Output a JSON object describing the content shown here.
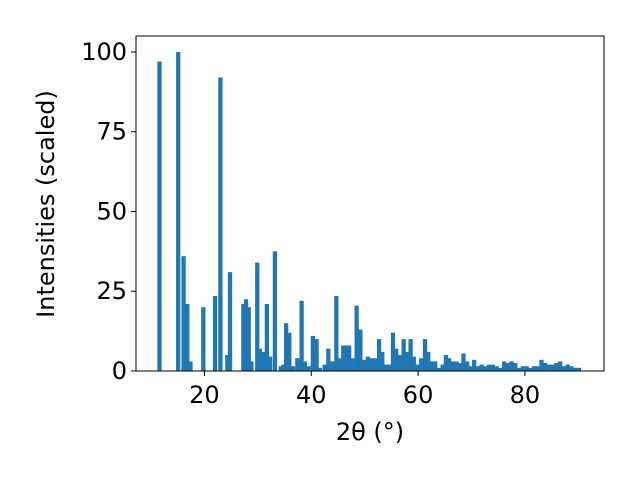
{
  "chart_data": {
    "type": "bar",
    "xlabel": "2θ (°)",
    "ylabel": "Intensities (scaled)",
    "xlim": [
      7.2,
      94.8
    ],
    "ylim": [
      0,
      105
    ],
    "x_ticks": [
      20,
      40,
      60,
      80
    ],
    "y_ticks": [
      0,
      25,
      50,
      75,
      100
    ],
    "grid": false,
    "bar_color": "#1f77b4",
    "bar_width": 0.8,
    "x": [
      11.6,
      15.1,
      16.1,
      16.8,
      17.4,
      19.8,
      22.0,
      23.0,
      24.3,
      24.8,
      27.3,
      27.8,
      28.3,
      28.8,
      29.9,
      30.4,
      31.0,
      31.7,
      32.3,
      33.2,
      34.3,
      34.8,
      35.3,
      35.9,
      36.6,
      37.4,
      38.2,
      38.8,
      39.5,
      40.3,
      41.0,
      41.6,
      42.5,
      43.2,
      44.0,
      44.7,
      45.3,
      46.0,
      46.6,
      47.1,
      47.7,
      48.5,
      49.2,
      49.9,
      50.6,
      51.3,
      52.0,
      52.7,
      53.3,
      54.0,
      54.7,
      55.3,
      55.9,
      56.6,
      57.3,
      58.0,
      58.6,
      59.2,
      59.9,
      60.6,
      61.3,
      61.9,
      62.5,
      63.2,
      63.9,
      64.6,
      65.2,
      65.8,
      66.5,
      67.2,
      67.8,
      68.5,
      69.2,
      69.8,
      70.5,
      71.2,
      71.9,
      72.6,
      73.3,
      74.0,
      74.7,
      75.4,
      76.1,
      76.8,
      77.5,
      78.2,
      78.9,
      79.6,
      80.3,
      81.0,
      81.7,
      82.4,
      83.1,
      83.8,
      84.5,
      85.2,
      85.9,
      86.6,
      87.3,
      88.0,
      88.7,
      89.4,
      90.1
    ],
    "values": [
      97,
      100,
      36,
      21,
      3,
      20,
      23.5,
      92,
      5,
      31,
      21,
      22.5,
      20,
      3,
      34,
      7,
      6,
      21,
      4.5,
      37.5,
      1.5,
      2,
      15,
      12,
      1.5,
      4,
      22,
      3,
      1.5,
      11,
      10,
      1,
      2,
      7,
      3,
      23.5,
      4,
      8,
      8,
      8,
      4,
      20.5,
      13,
      3.5,
      4.5,
      4,
      4,
      10,
      6,
      2,
      2,
      12,
      7,
      5,
      10,
      6,
      10,
      4.5,
      2,
      4,
      10,
      6,
      3,
      3,
      1,
      2,
      5,
      4,
      3,
      3,
      2.5,
      5.5,
      3,
      1.5,
      3.5,
      1.5,
      2,
      1.5,
      2,
      2,
      1.5,
      1,
      3,
      2.5,
      3,
      2.5,
      1,
      1.5,
      1.5,
      1,
      1.5,
      1.5,
      3.5,
      2.5,
      2,
      2,
      2.5,
      3,
      1.5,
      2,
      1.5,
      1,
      1
    ]
  }
}
